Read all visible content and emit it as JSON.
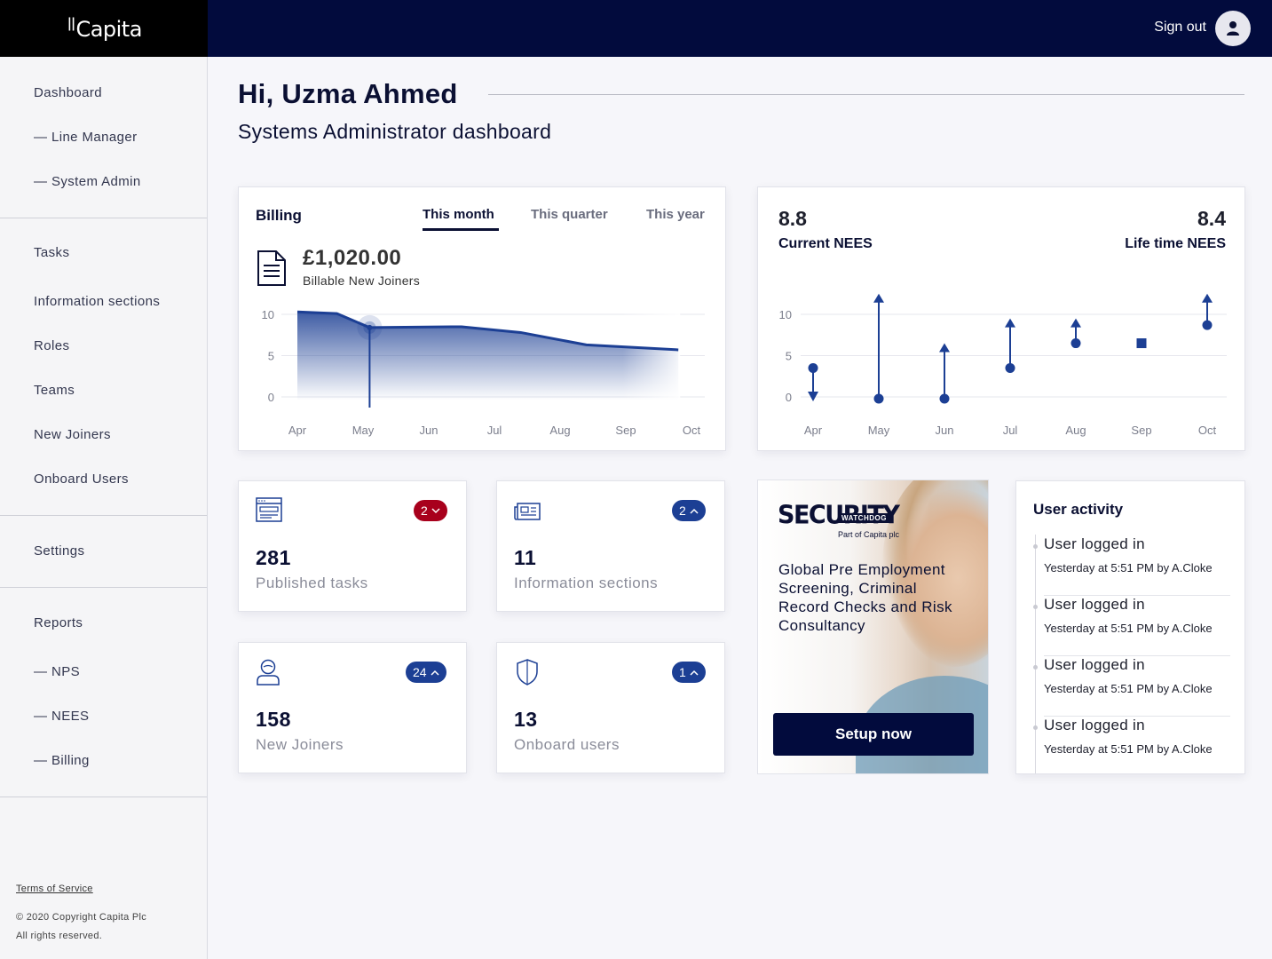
{
  "header": {
    "logo": "Capita",
    "sign_out": "Sign out"
  },
  "sidebar": {
    "items": [
      "Dashboard",
      "— Line Manager",
      "— System Admin",
      "Tasks",
      "Information sections",
      "Roles",
      "Teams",
      "New Joiners",
      "Onboard Users",
      "Settings",
      "Reports",
      "— NPS",
      "— NEES",
      "— Billing"
    ],
    "terms": "Terms of Service",
    "copyright": "© 2020 Copyright Capita Plc",
    "rights": "All rights reserved."
  },
  "greeting": {
    "title": "Hi, Uzma Ahmed",
    "subtitle": "Systems Administrator dashboard"
  },
  "billing": {
    "title": "Billing",
    "tabs": [
      "This month",
      "This quarter",
      "This year"
    ],
    "active_tab": "This month",
    "amount": "£1,020.00",
    "amount_label": "Billable New Joiners"
  },
  "nees": {
    "current_value": "8.8",
    "current_label": "Current NEES",
    "lifetime_value": "8.4",
    "lifetime_label": "Life time NEES"
  },
  "chart_data": [
    {
      "type": "area",
      "categories": [
        "Apr",
        "May",
        "Jun",
        "Jul",
        "Aug",
        "Sep",
        "Oct"
      ],
      "x": [
        0,
        0.6,
        1.1,
        2.5,
        3.4,
        4.4,
        5.8
      ],
      "values": [
        10.3,
        10.1,
        8.4,
        8.5,
        7.8,
        6.3,
        5.7
      ],
      "highlight_index": 2,
      "yticks": [
        0,
        5,
        10
      ],
      "ylim": [
        0,
        10.5
      ],
      "color": "#1c3f94"
    },
    {
      "type": "scatter",
      "categories": [
        "Apr",
        "May",
        "Jun",
        "Jul",
        "Aug",
        "Sep",
        "Oct"
      ],
      "points": [
        {
          "value": 3.5,
          "trend": "down"
        },
        {
          "value": 0,
          "trend": "up",
          "to": 12.5
        },
        {
          "value": 0,
          "trend": "up",
          "to": 6.5
        },
        {
          "value": 3.5,
          "trend": "up",
          "to": 9.5
        },
        {
          "value": 6.5,
          "trend": "up",
          "to": 9.5
        },
        {
          "value": 6.5,
          "trend": "none"
        },
        {
          "value": 8.7,
          "trend": "up",
          "to": 12.5
        }
      ],
      "yticks": [
        0,
        5,
        10
      ],
      "ylim": [
        0,
        10.5
      ],
      "color": "#1c3f94"
    }
  ],
  "stats": [
    {
      "value": "281",
      "label": "Published tasks",
      "badge": "2",
      "direction": "down",
      "badge_color": "#a8001c",
      "icon": "browser-window-icon"
    },
    {
      "value": "11",
      "label": "Information sections",
      "badge": "2",
      "direction": "up",
      "badge_color": "#1c3f94",
      "icon": "newspaper-icon"
    },
    {
      "value": "158",
      "label": "New Joiners",
      "badge": "24",
      "direction": "up",
      "badge_color": "#1c3f94",
      "icon": "user-icon"
    },
    {
      "value": "13",
      "label": "Onboard users",
      "badge": "1",
      "direction": "up",
      "badge_color": "#1c3f94",
      "icon": "shield-icon"
    }
  ],
  "ad": {
    "logo": "SECURITY",
    "logo_tag": "WATCHDOG",
    "logo_sub": "Part of Capita plc",
    "text": "Global Pre Employment Screening, Criminal Record Checks and Risk Consultancy",
    "button": "Setup now"
  },
  "activity": {
    "title": "User activity",
    "items": [
      {
        "title": "User logged in",
        "meta": "Yesterday at 5:51 PM by A.Cloke"
      },
      {
        "title": "User logged in",
        "meta": "Yesterday at 5:51 PM by A.Cloke"
      },
      {
        "title": "User logged in",
        "meta": "Yesterday at 5:51 PM by A.Cloke"
      },
      {
        "title": "User logged in",
        "meta": "Yesterday at 5:51 PM by A.Cloke"
      }
    ]
  }
}
